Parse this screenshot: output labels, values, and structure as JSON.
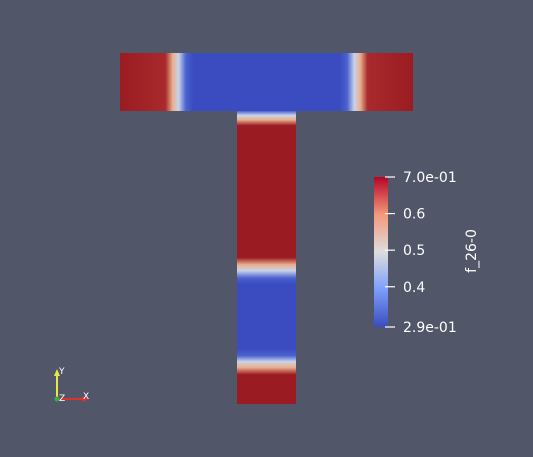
{
  "viewport": {
    "background": "#525669"
  },
  "field": {
    "name": "f_26-0",
    "range": [
      0.29,
      0.7
    ],
    "colormap": "Cool to Warm",
    "colors": {
      "low": "#3b4cc0",
      "mid": "#dddddd",
      "high": "#9b1b22"
    }
  },
  "colorbar": {
    "title": "f_26-0",
    "ticks": [
      {
        "label": "7.0e-01",
        "value": 0.7
      },
      {
        "label": "0.6",
        "value": 0.6
      },
      {
        "label": "0.5",
        "value": 0.5
      },
      {
        "label": "0.4",
        "value": 0.4
      },
      {
        "label": "2.9e-01",
        "value": 0.29
      }
    ]
  },
  "axes_triad": {
    "x_label": "X",
    "y_label": "Y",
    "z_label": "Z",
    "x_color": "#d9342b",
    "y_color": "#e8e84a",
    "z_color": "#2bb34a"
  }
}
